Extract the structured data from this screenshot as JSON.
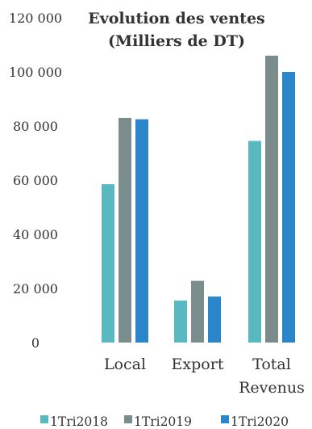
{
  "chart_data": {
    "type": "bar",
    "title": [
      "Evolution des ventes",
      "(Milliers de DT)"
    ],
    "categories": [
      [
        "Local"
      ],
      [
        "Export"
      ],
      [
        "Total",
        "Revenus"
      ]
    ],
    "series": [
      {
        "name": "1Tri2018",
        "color": "#5ab8c0",
        "values": [
          58500,
          15500,
          74500
        ]
      },
      {
        "name": "1Tri2019",
        "color": "#7a8c8c",
        "values": [
          83000,
          22800,
          106000
        ]
      },
      {
        "name": "1Tri2020",
        "color": "#2b86c9",
        "values": [
          82500,
          17000,
          100000
        ]
      }
    ],
    "ylim": [
      0,
      120000
    ],
    "yticks": [
      0,
      20000,
      40000,
      60000,
      80000,
      100000,
      120000
    ],
    "ytick_labels": [
      "0",
      "20 000",
      "40 000",
      "60 000",
      "80 000",
      "100 000",
      "120 000"
    ],
    "grid": false,
    "legend_position": "bottom"
  }
}
